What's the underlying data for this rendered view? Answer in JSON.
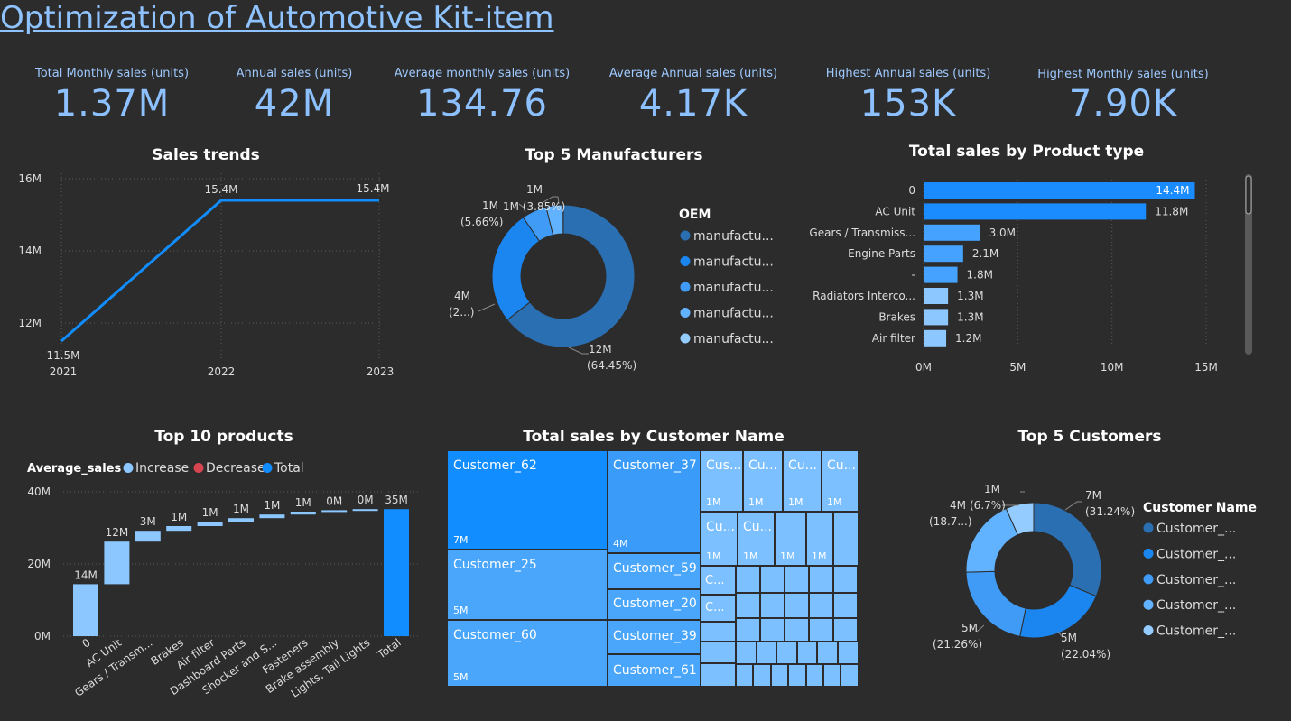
{
  "title": "Optimization of Automotive Kit-item",
  "kpis": [
    {
      "label": "Total Monthly sales (units)",
      "value": "1.37M"
    },
    {
      "label": "Annual sales (units)",
      "value": "42M"
    },
    {
      "label": "Average monthly sales (units)",
      "value": "134.76"
    },
    {
      "label": "Average Annual sales (units)",
      "value": "4.17K"
    },
    {
      "label": "Highest Annual sales (units)",
      "value": "153K"
    },
    {
      "label": "Highest Monthly sales (units)",
      "value": "7.90K"
    }
  ],
  "colors": {
    "background": "#2c2c2c",
    "accent": "#118dff",
    "blue_dark": "#2b6fb3",
    "blue_mid": "#1b86f0",
    "blue_light": "#62b3ff",
    "blue_lighter": "#94ccff"
  },
  "chart_data": [
    {
      "id": "sales_trends",
      "type": "line",
      "title": "Sales trends",
      "x": [
        "2021",
        "2022",
        "2023"
      ],
      "values": [
        11.5,
        15.4,
        15.4
      ],
      "data_labels": [
        "11.5M",
        "15.4M",
        "15.4M"
      ],
      "y_ticks": [
        "16M",
        "14M",
        "12M"
      ],
      "ylim": [
        11.5,
        16
      ],
      "grid": true
    },
    {
      "id": "top5_manufacturers",
      "type": "pie",
      "title": "Top 5 Manufacturers",
      "legend_title": "OEM",
      "legend": [
        "manufactu...",
        "manufactu...",
        "manufactu...",
        "manufactu...",
        "manufactu..."
      ],
      "values": [
        64.45,
        26.0,
        5.66,
        3.85,
        0.04
      ],
      "labels": [
        [
          "12M",
          "(64.45%)"
        ],
        [
          "4M",
          "(2...)"
        ],
        [
          "1M",
          "(5.66%)"
        ],
        [
          "1M (3.85%)"
        ],
        [
          "1M"
        ]
      ],
      "colors": [
        "#2b6fb3",
        "#1b86f0",
        "#3f9bf5",
        "#62b3ff",
        "#94ccff"
      ]
    },
    {
      "id": "sales_by_product_type",
      "type": "bar",
      "orientation": "horizontal",
      "title": "Total sales by Product type",
      "categories": [
        "0",
        "AC Unit",
        "Gears / Transmiss...",
        "Engine Parts",
        "-",
        "Radiators Interco...",
        "Brakes",
        "Air filter"
      ],
      "values": [
        14.4,
        11.8,
        3.0,
        2.1,
        1.8,
        1.3,
        1.3,
        1.2
      ],
      "data_labels": [
        "14.4M",
        "11.8M",
        "3.0M",
        "2.1M",
        "1.8M",
        "1.3M",
        "1.3M",
        "1.2M"
      ],
      "x_ticks": [
        "0M",
        "5M",
        "10M",
        "15M"
      ],
      "xlim": [
        0,
        15
      ],
      "grid": true
    },
    {
      "id": "top10_products",
      "type": "bar",
      "subtype": "waterfall",
      "title": "Top 10 products",
      "legend_title": "Average_sales",
      "legend": [
        "Increase",
        "Decrease",
        "Total"
      ],
      "legend_colors": [
        "#8cc7ff",
        "#d64550",
        "#118dff"
      ],
      "categories": [
        "0",
        "AC Unit",
        "Gears / Transm...",
        "Brakes",
        "Air filter",
        "Dashboard Parts",
        "Shocker and S...",
        "Fasteners",
        "Brake assembly",
        "Lights, Tail Lights",
        "Total"
      ],
      "values": [
        14.4,
        11.8,
        3.0,
        1.3,
        1.2,
        1.0,
        1.0,
        0.8,
        0.4,
        0.3,
        35.2
      ],
      "data_labels": [
        "14M",
        "12M",
        "3M",
        "1M",
        "1M",
        "1M",
        "1M",
        "1M",
        "0M",
        "0M",
        "35M"
      ],
      "y_ticks": [
        "40M",
        "20M",
        "0M"
      ],
      "ylim": [
        0,
        40
      ],
      "grid": true
    },
    {
      "id": "sales_by_customer",
      "type": "heatmap",
      "subtype": "treemap",
      "title": "Total sales by Customer Name",
      "items": [
        {
          "name": "Customer_62",
          "value": "7M"
        },
        {
          "name": "Customer_37",
          "value": "4M"
        },
        {
          "name": "Customer_25",
          "value": "5M"
        },
        {
          "name": "Customer_59",
          "value": ""
        },
        {
          "name": "Customer_20",
          "value": ""
        },
        {
          "name": "Customer_60",
          "value": "5M"
        },
        {
          "name": "Customer_39",
          "value": ""
        },
        {
          "name": "Customer_61",
          "value": ""
        },
        {
          "name": "Cus...",
          "value": "1M"
        },
        {
          "name": "Cu...",
          "value": "1M"
        },
        {
          "name": "Cu...",
          "value": "1M"
        },
        {
          "name": "Cu...",
          "value": "1M"
        },
        {
          "name": "Cu...",
          "value": "1M"
        },
        {
          "name": "Cu...",
          "value": "1M"
        },
        {
          "name": "",
          "value": "1M"
        },
        {
          "name": "",
          "value": "1M"
        },
        {
          "name": "C...",
          "value": ""
        },
        {
          "name": "C...",
          "value": ""
        }
      ]
    },
    {
      "id": "top5_customers",
      "type": "pie",
      "title": "Top 5 Customers",
      "legend_title": "Customer Name",
      "legend": [
        "Customer_...",
        "Customer_...",
        "Customer_...",
        "Customer_...",
        "Customer_..."
      ],
      "values": [
        31.24,
        22.04,
        21.26,
        18.76,
        6.7
      ],
      "labels": [
        [
          "7M",
          "(31.24%)"
        ],
        [
          "5M",
          "(22.04%)"
        ],
        [
          "5M",
          "(21.26%)"
        ],
        [
          "4M",
          "(18.7...)"
        ],
        [
          "1M",
          "(6.7%)"
        ]
      ],
      "colors": [
        "#2b6fb3",
        "#1b86f0",
        "#3f9bf5",
        "#62b3ff",
        "#94ccff"
      ]
    }
  ]
}
